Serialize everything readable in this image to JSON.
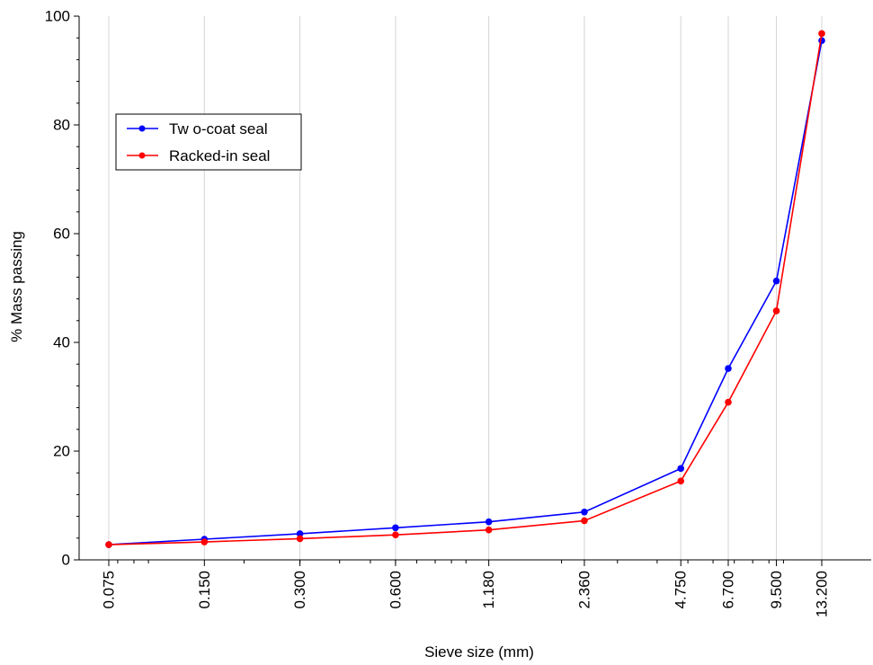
{
  "chart_data": {
    "type": "line",
    "title": "",
    "xlabel": "Sieve size (mm)",
    "ylabel": "% Mass passing",
    "x_scale": "log",
    "categories": [
      "0.075",
      "0.150",
      "0.300",
      "0.600",
      "1.180",
      "2.360",
      "4.750",
      "6.700",
      "9.500",
      "13.200"
    ],
    "x": [
      0.075,
      0.15,
      0.3,
      0.6,
      1.18,
      2.36,
      4.75,
      6.7,
      9.5,
      13.2
    ],
    "ylim": [
      0,
      100
    ],
    "yticks": [
      "0",
      "20",
      "40",
      "60",
      "80",
      "100"
    ],
    "grid": "vertical",
    "legend_position": "upper-left",
    "series": [
      {
        "name": "Tw o-coat seal",
        "color": "#0000ff",
        "values": [
          2.8,
          3.8,
          4.8,
          5.9,
          7.0,
          8.8,
          16.8,
          35.2,
          51.3,
          95.5
        ]
      },
      {
        "name": "Racked-in seal",
        "color": "#ff0000",
        "values": [
          2.8,
          3.3,
          3.9,
          4.6,
          5.5,
          7.2,
          14.5,
          29.0,
          45.8,
          96.8
        ]
      }
    ]
  }
}
